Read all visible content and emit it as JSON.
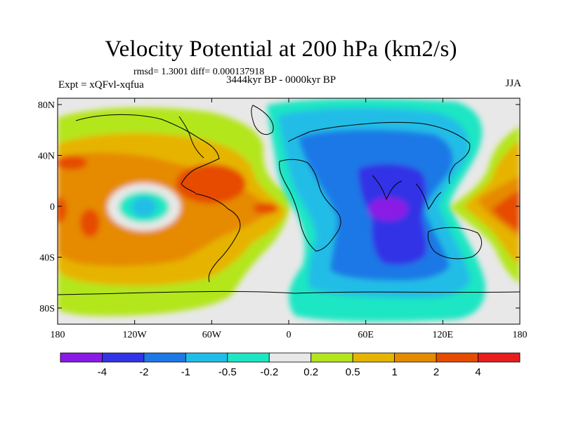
{
  "title": "Velocity Potential at 200 hPa (km2/s)",
  "stats": "rmsd= 1.3001 diff= 0.000137918",
  "experiment": "Expt = xQFvl-xqfua",
  "period": "3444kyr BP - 0000kyr BP",
  "season": "JJA",
  "x_ticks": [
    "180",
    "120W",
    "60W",
    "0",
    "60E",
    "120E",
    "180"
  ],
  "y_ticks": [
    "80N",
    "40N",
    "0",
    "40S",
    "80S"
  ],
  "colorbar": {
    "colors": [
      "#8a1ae6",
      "#3232e6",
      "#1e78e6",
      "#20bde6",
      "#1ee6c3",
      "#e8e8e8",
      "#b4e61e",
      "#e6b400",
      "#e68a00",
      "#e64b00",
      "#e61e1e"
    ],
    "labels": [
      "-4",
      "-2",
      "-1",
      "-0.5",
      "-0.2",
      "0.2",
      "0.5",
      "1",
      "2",
      "4"
    ]
  },
  "colors": {
    "land_fill": "#e8e8e8",
    "coastline": "#000000"
  }
}
